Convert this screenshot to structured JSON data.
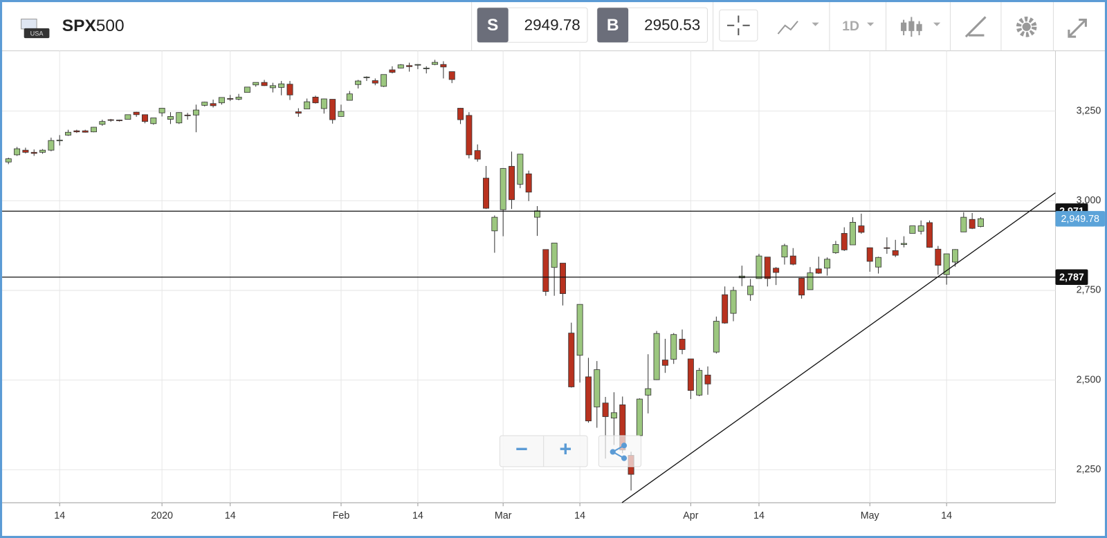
{
  "header": {
    "symbol_bold": "SPX",
    "symbol_rest": "500",
    "flag_label": "USA",
    "sell": {
      "label": "S",
      "price": "2949.78"
    },
    "buy": {
      "label": "B",
      "price": "2950.53"
    },
    "timeframe": "1D",
    "zoom": [
      "−",
      "+"
    ]
  },
  "chart_data": {
    "type": "candlestick",
    "categories": [
      null,
      null,
      null,
      null,
      null,
      null,
      "14",
      null,
      null,
      null,
      null,
      null,
      null,
      null,
      null,
      null,
      null,
      null,
      "2020",
      null,
      null,
      null,
      null,
      null,
      null,
      null,
      "14",
      null,
      null,
      null,
      null,
      null,
      null,
      null,
      null,
      null,
      null,
      null,
      null,
      "Feb",
      null,
      null,
      null,
      null,
      null,
      null,
      null,
      null,
      "14",
      null,
      null,
      null,
      null,
      null,
      null,
      null,
      null,
      null,
      "Mar",
      null,
      null,
      null,
      null,
      null,
      null,
      null,
      null,
      "14",
      null,
      null,
      null,
      null,
      null,
      null,
      null,
      null,
      null,
      null,
      null,
      null,
      "Apr",
      null,
      null,
      null,
      null,
      null,
      null,
      null,
      "14",
      null,
      null,
      null,
      null,
      null,
      null,
      null,
      null,
      null,
      null,
      null,
      null,
      "May",
      null,
      null,
      null,
      null,
      null,
      null,
      null,
      null,
      "14",
      null,
      null,
      null,
      null
    ],
    "open": [
      3108,
      3128,
      3141,
      3135,
      3135,
      3141,
      3167,
      3183,
      3195,
      3195,
      3192,
      3213,
      3226,
      3225,
      3227,
      3247,
      3240,
      3215,
      3245,
      3227,
      3217,
      3239,
      3239,
      3266,
      3271,
      3273,
      3285,
      3283,
      3302,
      3323,
      3330,
      3315,
      3316,
      3325,
      3248,
      3256,
      3289,
      3257,
      3283,
      3235,
      3280,
      3324,
      3344,
      3335,
      3319,
      3365,
      3370,
      3377,
      3378,
      3370,
      3380,
      3380,
      3360,
      3258,
      3238,
      3140,
      3063,
      2916,
      2975,
      3096,
      3046,
      3075,
      2954,
      2864,
      2814,
      2826,
      2631,
      2569,
      2509,
      2425,
      2436,
      2394,
      2431,
      2290,
      2345,
      2458,
      2501,
      2556,
      2558,
      2614,
      2559,
      2458,
      2514,
      2578,
      2738,
      2686,
      2785,
      2738,
      2783,
      2843,
      2812,
      2843,
      2846,
      2784,
      2752,
      2810,
      2812,
      2855,
      2909,
      2877,
      2930,
      2869,
      2815,
      2869,
      2861,
      2878,
      2909,
      2915,
      2939,
      2865,
      2794,
      2829,
      2913,
      2948,
      2928
    ],
    "high": [
      3120,
      3150,
      3148,
      3143,
      3144,
      3176,
      3183,
      3198,
      3198,
      3198,
      3206,
      3226,
      3228,
      3226,
      3240,
      3248,
      3240,
      3231,
      3258,
      3247,
      3247,
      3245,
      3268,
      3276,
      3282,
      3288,
      3295,
      3298,
      3317,
      3330,
      3337,
      3329,
      3334,
      3334,
      3258,
      3285,
      3293,
      3285,
      3283,
      3268,
      3306,
      3337,
      3347,
      3341,
      3352,
      3375,
      3381,
      3385,
      3381,
      3375,
      3393,
      3389,
      3360,
      3259,
      3247,
      3157,
      3097,
      2959,
      3091,
      3137,
      3130,
      3084,
      2985,
      2864,
      2882,
      2826,
      2660,
      2711,
      2562,
      2553,
      2453,
      2466,
      2454,
      2300,
      2449,
      2572,
      2637,
      2615,
      2631,
      2641,
      2559,
      2534,
      2538,
      2677,
      2761,
      2760,
      2819,
      2782,
      2852,
      2843,
      2815,
      2880,
      2868,
      2785,
      2815,
      2844,
      2842,
      2888,
      2926,
      2954,
      2964,
      2869,
      2844,
      2898,
      2891,
      2901,
      2930,
      2945,
      2945,
      2874,
      2852,
      2865,
      2968,
      2966,
      2954
    ],
    "low": [
      3102,
      3125,
      3132,
      3125,
      3131,
      3138,
      3154,
      3181,
      3189,
      3190,
      3191,
      3209,
      3220,
      3221,
      3227,
      3234,
      3216,
      3212,
      3235,
      3214,
      3214,
      3226,
      3191,
      3263,
      3260,
      3268,
      3278,
      3280,
      3302,
      3318,
      3320,
      3302,
      3294,
      3281,
      3234,
      3256,
      3271,
      3243,
      3215,
      3235,
      3280,
      3313,
      3334,
      3322,
      3317,
      3355,
      3369,
      3360,
      3367,
      3355,
      3378,
      3341,
      3328,
      3214,
      3118,
      3109,
      2977,
      2855,
      2901,
      2977,
      3035,
      2999,
      2902,
      2735,
      2735,
      2708,
      2479,
      2493,
      2381,
      2367,
      2281,
      2319,
      2296,
      2192,
      2345,
      2407,
      2500,
      2520,
      2545,
      2572,
      2447,
      2455,
      2459,
      2574,
      2657,
      2664,
      2762,
      2721,
      2783,
      2761,
      2765,
      2822,
      2820,
      2727,
      2752,
      2796,
      2791,
      2852,
      2860,
      2877,
      2908,
      2802,
      2797,
      2852,
      2843,
      2870,
      2909,
      2906,
      2869,
      2794,
      2766,
      2816,
      2913,
      2921,
      2926
    ],
    "close": [
      3117,
      3145,
      3135,
      3132,
      3141,
      3168,
      3169,
      3191,
      3192,
      3191,
      3205,
      3221,
      3224,
      3223,
      3240,
      3240,
      3221,
      3231,
      3258,
      3235,
      3246,
      3237,
      3253,
      3275,
      3265,
      3288,
      3283,
      3289,
      3317,
      3330,
      3321,
      3321,
      3326,
      3295,
      3244,
      3276,
      3273,
      3284,
      3226,
      3249,
      3298,
      3334,
      3345,
      3328,
      3352,
      3358,
      3379,
      3374,
      3380,
      3370,
      3386,
      3373,
      3338,
      3226,
      3128,
      3116,
      2979,
      2954,
      3090,
      3003,
      3130,
      3024,
      2972,
      2747,
      2882,
      2741,
      2481,
      2711,
      2386,
      2529,
      2398,
      2409,
      2305,
      2237,
      2447,
      2476,
      2630,
      2541,
      2627,
      2585,
      2471,
      2527,
      2489,
      2664,
      2659,
      2750,
      2790,
      2762,
      2846,
      2783,
      2800,
      2875,
      2823,
      2737,
      2799,
      2798,
      2837,
      2878,
      2863,
      2940,
      2912,
      2831,
      2842,
      2868,
      2848,
      2881,
      2930,
      2930,
      2870,
      2820,
      2852,
      2864,
      2954,
      2923,
      2950
    ],
    "up_color": "#9cc77f",
    "down_color": "#b8321f",
    "ylim": [
      2158,
      3418
    ],
    "yticks": [
      {
        "value": 2250,
        "label": "2,250"
      },
      {
        "value": 2500,
        "label": "2,500"
      },
      {
        "value": 2750,
        "label": "2,750"
      },
      {
        "value": 3000,
        "label": "3,000"
      },
      {
        "value": 3250,
        "label": "3,250"
      }
    ],
    "grid": true,
    "levels": [
      {
        "value": 2971,
        "label": "2,971"
      },
      {
        "value": 2787,
        "label": "2,787"
      }
    ],
    "last_price": {
      "value": 2949.78,
      "label": "2,949.78",
      "color": "#5ba3d9"
    }
  }
}
